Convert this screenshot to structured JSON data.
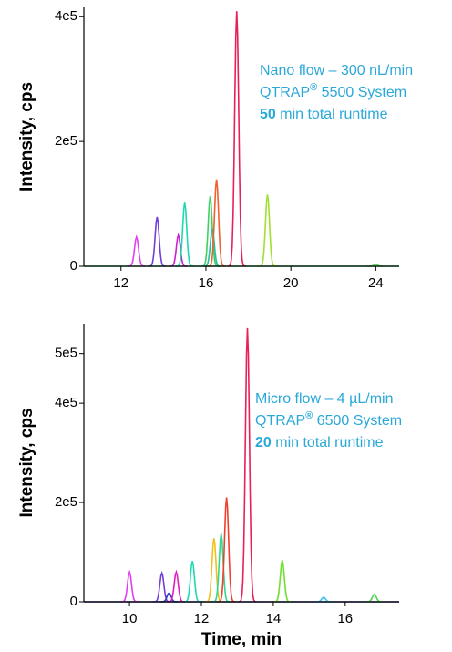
{
  "chart_data": [
    {
      "type": "chromatogram",
      "y_label": "Intensity, cps",
      "xlim": [
        10.25,
        25.1
      ],
      "xticks": [
        12,
        16,
        20,
        24
      ],
      "ylim": [
        0,
        415000
      ],
      "yticks": [
        0,
        {
          "value": 200000,
          "label": "2e5"
        },
        {
          "value": 400000,
          "label": "4e5"
        }
      ],
      "annotation": [
        [
          {
            "text": "Nano flow – 300 nL/min"
          }
        ],
        [
          {
            "text": "QTRAP"
          },
          {
            "text": "®",
            "style": "sup"
          },
          {
            "text": " 5500 System"
          }
        ],
        [
          {
            "text": "50",
            "style": "bold"
          },
          {
            "text": " min total runtime"
          }
        ]
      ],
      "peaks": [
        {
          "x": 12.73,
          "height": 47000,
          "color": "#e040f0"
        },
        {
          "x": 13.7,
          "height": 79000,
          "color": "#7040d8"
        },
        {
          "x": 14.7,
          "height": 50000,
          "color": "#d020d0"
        },
        {
          "x": 15.0,
          "height": 102000,
          "color": "#20d8b0"
        },
        {
          "x": 16.2,
          "height": 112000,
          "color": "#40d060"
        },
        {
          "x": 16.3,
          "height": 60000,
          "color": "#20c0a0"
        },
        {
          "x": 16.5,
          "height": 139000,
          "color": "#f06030"
        },
        {
          "x": 17.45,
          "height": 409000,
          "color": "#e8205a"
        },
        {
          "x": 18.9,
          "height": 115000,
          "color": "#a0e030"
        },
        {
          "x": 24.0,
          "height": 3000,
          "color": "#60d060"
        }
      ]
    },
    {
      "type": "chromatogram",
      "y_label": "Intensity, cps",
      "x_label": "Time, min",
      "xlim": [
        8.73,
        17.5
      ],
      "xticks": [
        10,
        12,
        14,
        16
      ],
      "ylim": [
        0,
        560000
      ],
      "yticks": [
        0,
        {
          "value": 200000,
          "label": "2e5"
        },
        {
          "value": 400000,
          "label": "4e5"
        },
        {
          "value": 500000,
          "label": "5e5"
        }
      ],
      "annotation": [
        [
          {
            "text": "Micro flow – 4 µL/min"
          }
        ],
        [
          {
            "text": "QTRAP"
          },
          {
            "text": "®",
            "style": "sup"
          },
          {
            "text": " 6500 System"
          }
        ],
        [
          {
            "text": "20",
            "style": "bold"
          },
          {
            "text": " min total runtime"
          }
        ]
      ],
      "peaks": [
        {
          "x": 10.0,
          "height": 60000,
          "color": "#e040f0"
        },
        {
          "x": 10.9,
          "height": 58000,
          "color": "#7040d8"
        },
        {
          "x": 11.1,
          "height": 18000,
          "color": "#3040c0"
        },
        {
          "x": 11.3,
          "height": 60000,
          "color": "#e020c0"
        },
        {
          "x": 11.75,
          "height": 82000,
          "color": "#20d8b0"
        },
        {
          "x": 12.35,
          "height": 128000,
          "color": "#f0c020"
        },
        {
          "x": 12.55,
          "height": 137000,
          "color": "#30d890"
        },
        {
          "x": 12.7,
          "height": 210000,
          "color": "#f04030"
        },
        {
          "x": 13.28,
          "height": 551000,
          "color": "#e8205a"
        },
        {
          "x": 14.25,
          "height": 84000,
          "color": "#70e030"
        },
        {
          "x": 15.4,
          "height": 9000,
          "color": "#40c0f0"
        },
        {
          "x": 16.81,
          "height": 15000,
          "color": "#50d050"
        }
      ]
    }
  ]
}
